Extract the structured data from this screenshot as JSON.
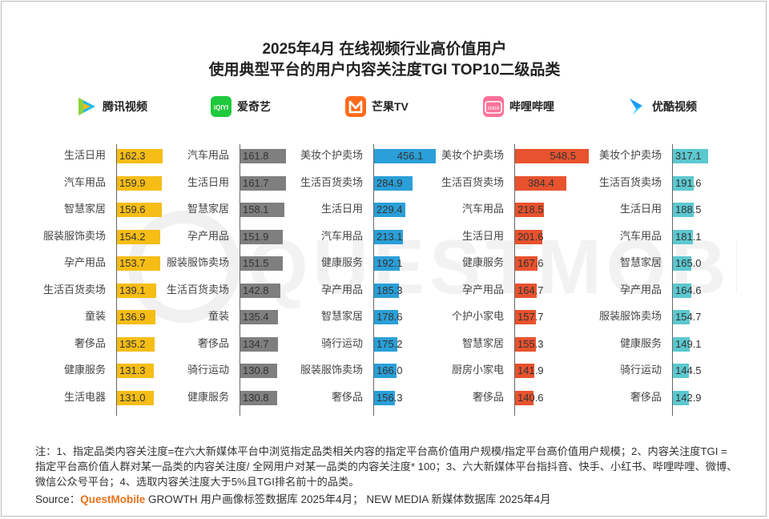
{
  "title_line1": "2025年4月 在线视频行业高价值用户",
  "title_line2": "使用典型平台的用户内容关注度TGI TOP10二级品类",
  "watermark": "QUESTMOBILE",
  "note": "注：1、指定品类内容关注度=在六大新媒体平台中浏览指定品类相关内容的指定平台高价值用户规模/指定平台高价值用户规模；2、内容关注度TGI = 指定平台高价值人群对某一品类的内容关注度/ 全网用户对某一品类的内容关注度* 100；3、六大新媒体平台指抖音、快手、小红书、哔哩哔哩、微博、微信公众号平台；4、选取内容关注度大于5%且TGI排名前十的品类。",
  "source_prefix": "Source：",
  "source_brand": "QuestMobile",
  "source_rest": " GROWTH 用户画像标签数据库 2025年4月； NEW MEDIA 新媒体数据库 2025年4月",
  "chart_data": [
    {
      "type": "bar",
      "platform": "腾讯视频",
      "logo": "tencent-video-icon",
      "color": "#f6bd16",
      "categories": [
        "生活日用",
        "汽车用品",
        "智慧家居",
        "服装服饰卖场",
        "孕产用品",
        "生活百货卖场",
        "童装",
        "奢侈品",
        "健康服务",
        "生活电器"
      ],
      "values": [
        162.3,
        159.9,
        159.6,
        154.2,
        153.7,
        139.1,
        136.9,
        135.2,
        131.3,
        131.0
      ]
    },
    {
      "type": "bar",
      "platform": "爱奇艺",
      "logo": "iqiyi-icon",
      "logo_text": "iQIYI",
      "color": "#7f7f7f",
      "categories": [
        "汽车用品",
        "生活日用",
        "智慧家居",
        "孕产用品",
        "服装服饰卖场",
        "生活百货卖场",
        "童装",
        "奢侈品",
        "骑行运动",
        "健康服务"
      ],
      "values": [
        161.8,
        161.7,
        158.1,
        151.9,
        151.5,
        142.8,
        135.4,
        134.7,
        130.8,
        130.8
      ]
    },
    {
      "type": "bar",
      "platform": "芒果TV",
      "logo": "mango-tv-icon",
      "color": "#2a9fd8",
      "categories": [
        "美妆个护卖场",
        "生活百货卖场",
        "生活日用",
        "汽车用品",
        "健康服务",
        "孕产用品",
        "智慧家居",
        "骑行运动",
        "服装服饰卖场",
        "奢侈品"
      ],
      "values": [
        456.1,
        284.9,
        229.4,
        213.1,
        192.1,
        185.3,
        178.6,
        175.2,
        166.0,
        156.3
      ]
    },
    {
      "type": "bar",
      "platform": "哔哩哔哩",
      "logo": "bilibili-icon",
      "logo_text": "bilibili",
      "color": "#e8522e",
      "categories": [
        "美妆个护卖场",
        "生活百货卖场",
        "汽车用品",
        "生活日用",
        "健康服务",
        "孕产用品",
        "个护小家电",
        "智慧家居",
        "厨房小家电",
        "奢侈品"
      ],
      "values": [
        548.5,
        384.4,
        218.5,
        201.6,
        167.6,
        164.7,
        157.7,
        155.3,
        141.9,
        140.6
      ]
    },
    {
      "type": "bar",
      "platform": "优酷视频",
      "logo": "youku-icon",
      "color": "#5cc8cf",
      "categories": [
        "美妆个护卖场",
        "生活百货卖场",
        "生活日用",
        "汽车用品",
        "智慧家居",
        "孕产用品",
        "服装服饰卖场",
        "健康服务",
        "骑行运动",
        "奢侈品"
      ],
      "values": [
        317.1,
        191.6,
        188.5,
        181.1,
        165.0,
        164.6,
        154.7,
        149.1,
        144.5,
        142.9
      ]
    }
  ]
}
